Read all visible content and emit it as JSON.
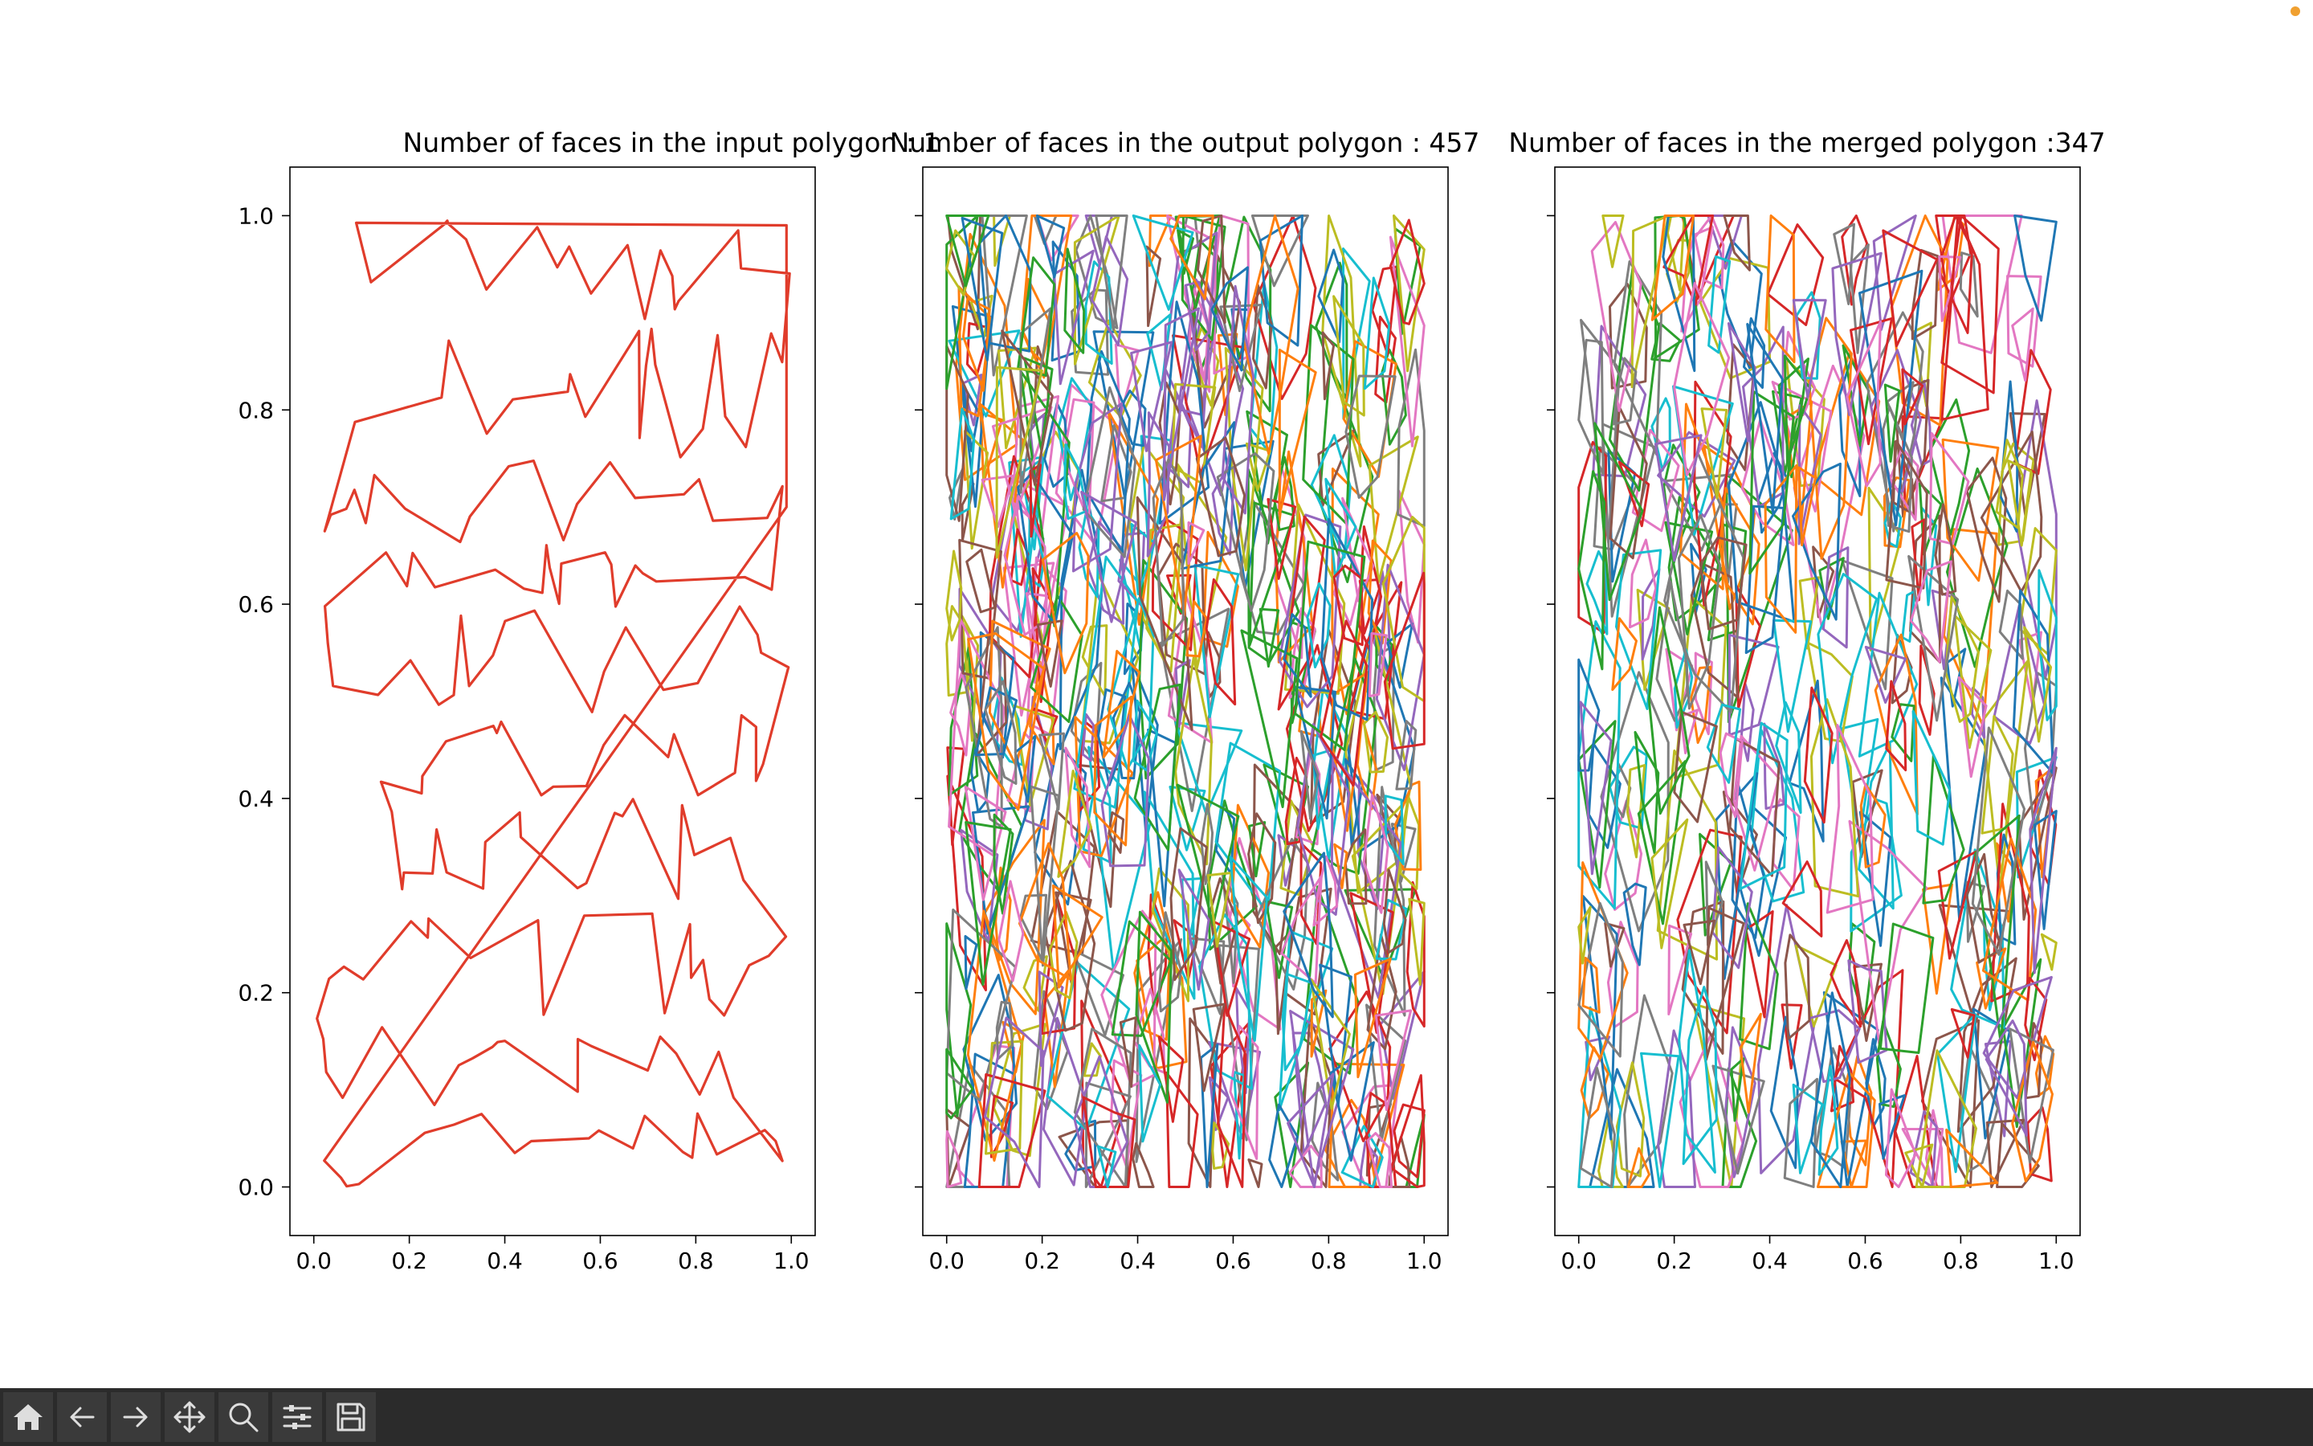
{
  "window": {
    "toolbar": [
      {
        "icon": "home-icon",
        "label": "Home"
      },
      {
        "icon": "back-arrow-icon",
        "label": "Back"
      },
      {
        "icon": "forward-arrow-icon",
        "label": "Forward"
      },
      {
        "icon": "pan-move-icon",
        "label": "Pan"
      },
      {
        "icon": "zoom-magnifier-icon",
        "label": "Zoom"
      },
      {
        "icon": "configure-subplots-icon",
        "label": "Subplots"
      },
      {
        "icon": "save-floppy-icon",
        "label": "Save"
      }
    ]
  },
  "chart_data": [
    {
      "type": "line",
      "title": "Number of faces in the input polygon :  1",
      "xlim": [
        -0.05,
        1.05
      ],
      "ylim": [
        -0.05,
        1.05
      ],
      "xticks": [
        0.0,
        0.2,
        0.4,
        0.6,
        0.8,
        1.0
      ],
      "xtick_labels": [
        "0.0",
        "0.2",
        "0.4",
        "0.6",
        "0.8",
        "1.0"
      ],
      "yticks": [
        0.0,
        0.2,
        0.4,
        0.6,
        0.8,
        1.0
      ],
      "ytick_labels": [
        "0.0",
        "0.2",
        "0.4",
        "0.6",
        "0.8",
        "1.0"
      ],
      "show_yticklabels": true,
      "grid": false,
      "color": "#e03c2b",
      "faces": 1,
      "seed": 11
    },
    {
      "type": "line",
      "title": "Number of faces in the output polygon : 457",
      "xlim": [
        -0.05,
        1.05
      ],
      "ylim": [
        -0.05,
        1.05
      ],
      "xticks": [
        0.0,
        0.2,
        0.4,
        0.6,
        0.8,
        1.0
      ],
      "xtick_labels": [
        "0.0",
        "0.2",
        "0.4",
        "0.6",
        "0.8",
        "1.0"
      ],
      "yticks": [
        0.0,
        0.2,
        0.4,
        0.6,
        0.8,
        1.0
      ],
      "show_yticklabels": false,
      "grid": false,
      "faces": 457,
      "seed": 23
    },
    {
      "type": "line",
      "title": "Number of faces in the merged polygon :347",
      "xlim": [
        -0.05,
        1.05
      ],
      "ylim": [
        -0.05,
        1.05
      ],
      "xticks": [
        0.0,
        0.2,
        0.4,
        0.6,
        0.8,
        1.0
      ],
      "xtick_labels": [
        "0.0",
        "0.2",
        "0.4",
        "0.6",
        "0.8",
        "1.0"
      ],
      "yticks": [
        0.0,
        0.2,
        0.4,
        0.6,
        0.8,
        1.0
      ],
      "show_yticklabels": false,
      "grid": false,
      "faces": 347,
      "seed": 37
    }
  ],
  "palette": [
    "#1f77b4",
    "#ff7f0e",
    "#2ca02c",
    "#d62728",
    "#9467bd",
    "#8c564b",
    "#e377c2",
    "#7f7f7f",
    "#bcbd22",
    "#17becf"
  ]
}
